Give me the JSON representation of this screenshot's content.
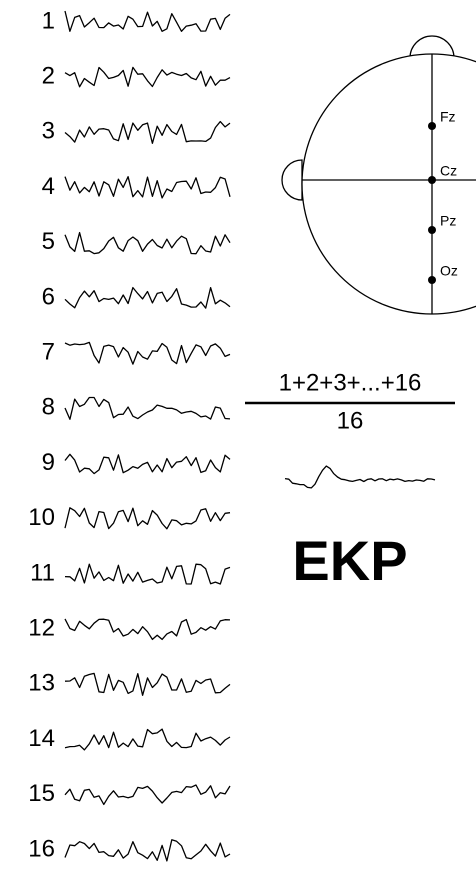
{
  "trials": [
    "1",
    "2",
    "3",
    "4",
    "5",
    "6",
    "7",
    "8",
    "9",
    "10",
    "11",
    "12",
    "13",
    "14",
    "15",
    "16"
  ],
  "electrodes": [
    "Fz",
    "Cz",
    "Pz",
    "Oz"
  ],
  "formula": {
    "numerator": "1+2+3+...+16",
    "denominator": "16"
  },
  "label": "EKP"
}
